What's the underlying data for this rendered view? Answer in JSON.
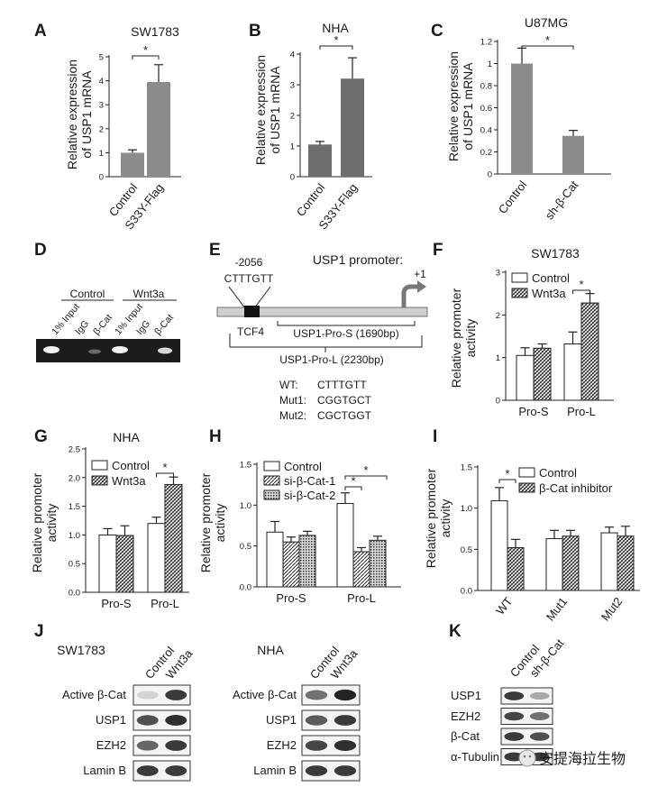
{
  "panels": {
    "A": {
      "letter": "A",
      "title": "SW1783",
      "ylabel_line1": "Relative expression",
      "ylabel_line2": "of USP1 mRNA",
      "ticks": [
        "0",
        "1",
        "2",
        "3",
        "4",
        "5"
      ],
      "sig": "*"
    },
    "B": {
      "letter": "B",
      "title": "NHA",
      "ylabel_line1": "Relative expression",
      "ylabel_line2": "of USP1 mRNA",
      "ticks": [
        "0",
        "1",
        "2",
        "3",
        "4"
      ],
      "sig": "*"
    },
    "C": {
      "letter": "C",
      "title": "U87MG",
      "ylabel_line1": "Relative expression",
      "ylabel_line2": "of USP1 mRNA",
      "ticks": [
        "0",
        "0.2",
        "0.4",
        "0.6",
        "0.8",
        "1",
        "1.2"
      ],
      "sig": "*"
    },
    "D": {
      "letter": "D",
      "group1": "Control",
      "group2": "Wnt3a",
      "lanes": [
        "1% Input",
        "IgG",
        "β-Cat",
        "1% Input",
        "IgG",
        "β-Cat"
      ]
    },
    "E": {
      "letter": "E",
      "title": "USP1 promoter:",
      "position": "-2056",
      "site_seq": "CTTTGTT",
      "tss": "+1",
      "tf": "TCF4",
      "pro_s": "USP1-Pro-S (1690bp)",
      "pro_l": "USP1-Pro-L (2230bp)",
      "mutants": [
        {
          "name": "WT:",
          "seq": "CTTTGTT"
        },
        {
          "name": "Mut1:",
          "seq": "CGGTGCT"
        },
        {
          "name": "Mut2:",
          "seq": "CGCTGGT"
        }
      ]
    },
    "F": {
      "letter": "F",
      "title": "SW1783",
      "ylabel_line1": "Relative promoter",
      "ylabel_line2": "activity",
      "ticks": [
        "0",
        "1",
        "2",
        "3"
      ],
      "sig": "*"
    },
    "G": {
      "letter": "G",
      "title": "NHA",
      "ylabel_line1": "Relative promoter",
      "ylabel_line2": "activity",
      "ticks": [
        "0.0",
        "0.5",
        "1.0",
        "1.5",
        "2.0",
        "2.5"
      ],
      "sig": "*"
    },
    "H": {
      "letter": "H",
      "ylabel_line1": "Relative promoter",
      "ylabel_line2": "activity",
      "ticks": [
        "0.0",
        "0.5",
        "1.0",
        "1.5"
      ],
      "sig1": "*",
      "sig2": "*"
    },
    "I": {
      "letter": "I",
      "ylabel_line1": "Relative promoter",
      "ylabel_line2": "activity",
      "ticks": [
        "0.0",
        "0.5",
        "1.0",
        "1.5"
      ],
      "sig": "*"
    },
    "J": {
      "letter": "J",
      "left_title": "SW1783",
      "right_title": "NHA",
      "lanes": [
        "Control",
        "Wnt3a"
      ],
      "rows": [
        "Active β-Cat",
        "USP1",
        "EZH2",
        "Lamin B"
      ]
    },
    "K": {
      "letter": "K",
      "lanes": [
        "Control",
        "sh-β-Cat"
      ],
      "rows": [
        "USP1",
        "EZH2",
        "β-Cat",
        "α-Tubulin"
      ]
    }
  },
  "watermark": "安提海拉生物",
  "chart_data": [
    {
      "panel": "A",
      "type": "bar",
      "title": "SW1783",
      "ylabel": "Relative expression of USP1 mRNA",
      "ylim": [
        0,
        5
      ],
      "categories": [
        "Control",
        "S33Y-Flag"
      ],
      "values": [
        1.0,
        3.95
      ],
      "errors": [
        0.12,
        0.72
      ],
      "colors": [
        "#8c8c8c",
        "#8c8c8c"
      ]
    },
    {
      "panel": "B",
      "type": "bar",
      "title": "NHA",
      "ylabel": "Relative expression of USP1 mRNA",
      "ylim": [
        0,
        4
      ],
      "categories": [
        "Control",
        "S33Y-Flag"
      ],
      "values": [
        1.05,
        3.2
      ],
      "errors": [
        0.1,
        0.68
      ],
      "colors": [
        "#6e6e6e",
        "#6e6e6e"
      ]
    },
    {
      "panel": "C",
      "type": "bar",
      "title": "U87MG",
      "ylabel": "Relative expression of USP1 mRNA",
      "ylim": [
        0,
        1.2
      ],
      "categories": [
        "Control",
        "sh-β-Cat"
      ],
      "values": [
        1.0,
        0.345
      ],
      "errors": [
        0.14,
        0.05
      ],
      "colors": [
        "#8c8c8c",
        "#8c8c8c"
      ]
    },
    {
      "panel": "F",
      "type": "bar",
      "title": "SW1783",
      "ylabel": "Relative promoter activity",
      "ylim": [
        0,
        3
      ],
      "categories": [
        "Pro-S",
        "Pro-L"
      ],
      "series": [
        {
          "name": "Control",
          "values": [
            1.05,
            1.32
          ],
          "errors": [
            0.18,
            0.28
          ]
        },
        {
          "name": "Wnt3a",
          "values": [
            1.22,
            2.28
          ],
          "errors": [
            0.1,
            0.22
          ]
        }
      ]
    },
    {
      "panel": "G",
      "type": "bar",
      "title": "NHA",
      "ylabel": "Relative promoter activity",
      "ylim": [
        0,
        2.5
      ],
      "categories": [
        "Pro-S",
        "Pro-L"
      ],
      "series": [
        {
          "name": "Control",
          "values": [
            1.0,
            1.2
          ],
          "errors": [
            0.11,
            0.11
          ]
        },
        {
          "name": "Wnt3a",
          "values": [
            0.99,
            1.88
          ],
          "errors": [
            0.17,
            0.13
          ]
        }
      ]
    },
    {
      "panel": "H",
      "type": "bar",
      "ylabel": "Relative promoter activity",
      "ylim": [
        0,
        1.5
      ],
      "categories": [
        "Pro-S",
        "Pro-L"
      ],
      "series": [
        {
          "name": "Control",
          "values": [
            0.67,
            1.02
          ],
          "errors": [
            0.13,
            0.13
          ]
        },
        {
          "name": "si-β-Cat-1",
          "values": [
            0.55,
            0.43
          ],
          "errors": [
            0.06,
            0.05
          ]
        },
        {
          "name": "si-β-Cat-2",
          "values": [
            0.63,
            0.57
          ],
          "errors": [
            0.05,
            0.05
          ]
        }
      ]
    },
    {
      "panel": "I",
      "type": "bar",
      "ylabel": "Relative promoter activity",
      "ylim": [
        0,
        1.5
      ],
      "categories": [
        "WT",
        "Mut1",
        "Mut2"
      ],
      "series": [
        {
          "name": "Control",
          "values": [
            1.09,
            0.63,
            0.7
          ],
          "errors": [
            0.16,
            0.1,
            0.07
          ]
        },
        {
          "name": "β-Cat inhibitor",
          "values": [
            0.52,
            0.66,
            0.66
          ],
          "errors": [
            0.1,
            0.07,
            0.12
          ]
        }
      ]
    }
  ]
}
